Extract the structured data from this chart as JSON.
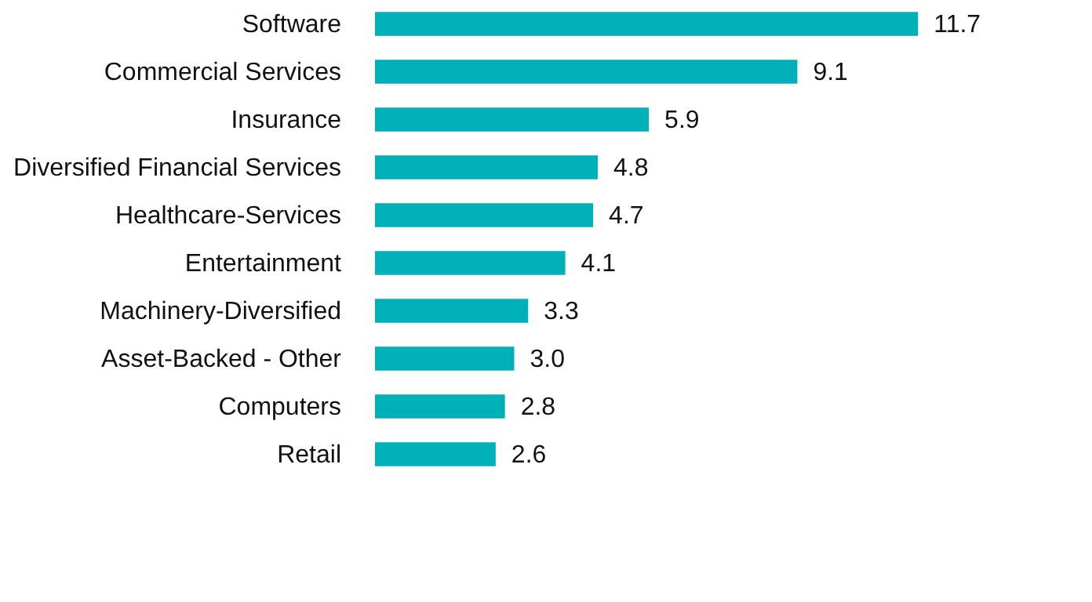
{
  "chart_data": {
    "type": "bar",
    "orientation": "horizontal",
    "color": "#00b0b9",
    "categories": [
      "Software",
      "Commercial Services",
      "Insurance",
      "Diversified Financial Services",
      "Healthcare-Services",
      "Entertainment",
      "Machinery-Diversified",
      "Asset-Backed - Other",
      "Computers",
      "Retail"
    ],
    "values": [
      11.7,
      9.1,
      5.9,
      4.8,
      4.7,
      4.1,
      3.3,
      3.0,
      2.8,
      2.6
    ],
    "value_labels": [
      "11.7",
      "9.1",
      "5.9",
      "4.8",
      "4.7",
      "4.1",
      "3.3",
      "3.0",
      "2.8",
      "2.6"
    ]
  }
}
